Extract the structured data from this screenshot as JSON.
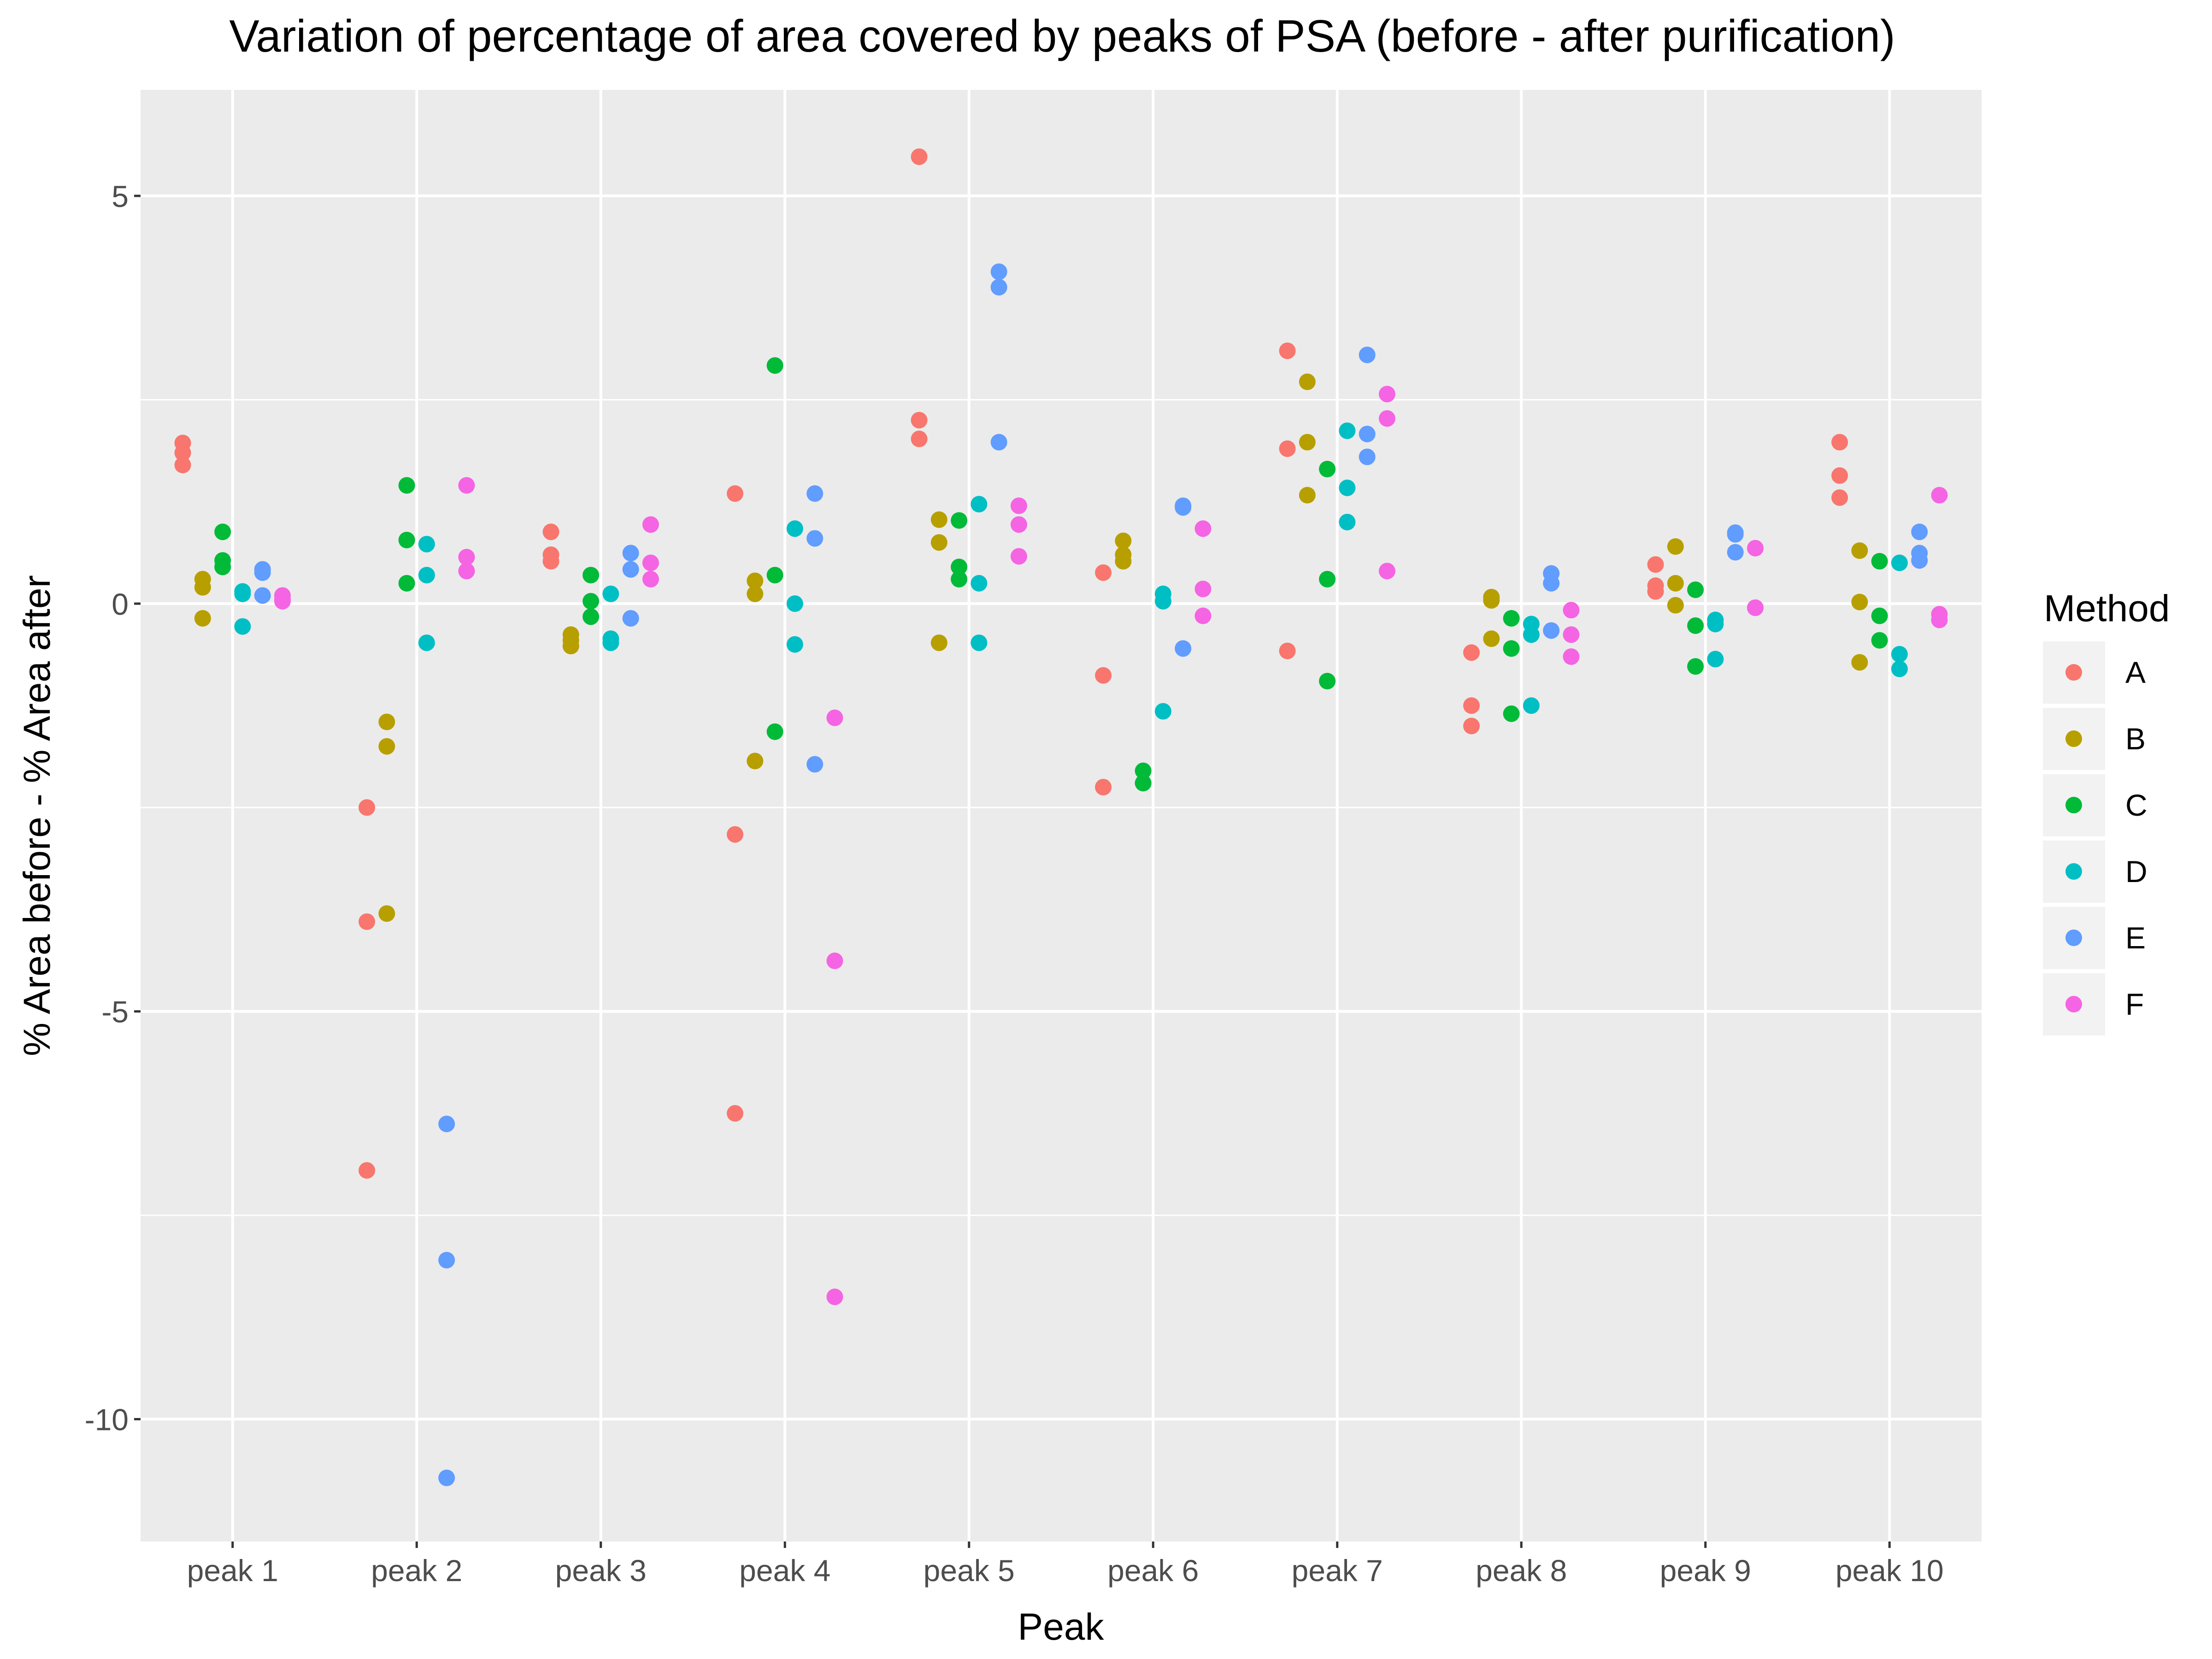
{
  "chart_data": {
    "type": "scatter",
    "title": "Variation of percentage of area covered by peaks of PSA (before - after purification)",
    "xlabel": "Peak",
    "ylabel": "% Area before - % Area after",
    "categories": [
      "peak 1",
      "peak 2",
      "peak 3",
      "peak 4",
      "peak 5",
      "peak 6",
      "peak 7",
      "peak 8",
      "peak 9",
      "peak 10"
    ],
    "ylim": [
      -11.5,
      6.3
    ],
    "yticks": [
      5,
      0,
      -5,
      -10
    ],
    "ytick_labels": [
      "5",
      "0",
      "-5",
      "-10"
    ],
    "grid": true,
    "legend": {
      "title": "Method",
      "position": "right"
    },
    "series": [
      {
        "name": "A",
        "color": "#F8766D",
        "points": [
          {
            "x": "peak 1",
            "y": 1.97
          },
          {
            "x": "peak 1",
            "y": 1.85
          },
          {
            "x": "peak 1",
            "y": 1.7
          },
          {
            "x": "peak 2",
            "y": -2.5
          },
          {
            "x": "peak 2",
            "y": -3.9
          },
          {
            "x": "peak 2",
            "y": -6.95
          },
          {
            "x": "peak 3",
            "y": 0.88
          },
          {
            "x": "peak 3",
            "y": 0.6
          },
          {
            "x": "peak 3",
            "y": 0.52
          },
          {
            "x": "peak 4",
            "y": 1.35
          },
          {
            "x": "peak 4",
            "y": -2.83
          },
          {
            "x": "peak 4",
            "y": -6.25
          },
          {
            "x": "peak 5",
            "y": 5.48
          },
          {
            "x": "peak 5",
            "y": 2.25
          },
          {
            "x": "peak 5",
            "y": 2.02
          },
          {
            "x": "peak 6",
            "y": 0.38
          },
          {
            "x": "peak 6",
            "y": -0.88
          },
          {
            "x": "peak 6",
            "y": -2.25
          },
          {
            "x": "peak 7",
            "y": 3.1
          },
          {
            "x": "peak 7",
            "y": 1.9
          },
          {
            "x": "peak 7",
            "y": -0.58
          },
          {
            "x": "peak 8",
            "y": -0.6
          },
          {
            "x": "peak 8",
            "y": -1.25
          },
          {
            "x": "peak 8",
            "y": -1.5
          },
          {
            "x": "peak 9",
            "y": 0.48
          },
          {
            "x": "peak 9",
            "y": 0.22
          },
          {
            "x": "peak 9",
            "y": 0.15
          },
          {
            "x": "peak 10",
            "y": 1.98
          },
          {
            "x": "peak 10",
            "y": 1.57
          },
          {
            "x": "peak 10",
            "y": 1.3
          }
        ]
      },
      {
        "name": "B",
        "color": "#B79F00",
        "points": [
          {
            "x": "peak 1",
            "y": 0.3
          },
          {
            "x": "peak 1",
            "y": 0.2
          },
          {
            "x": "peak 1",
            "y": -0.18
          },
          {
            "x": "peak 2",
            "y": -1.45
          },
          {
            "x": "peak 2",
            "y": -1.75
          },
          {
            "x": "peak 2",
            "y": -3.8
          },
          {
            "x": "peak 3",
            "y": -0.38
          },
          {
            "x": "peak 3",
            "y": -0.45
          },
          {
            "x": "peak 3",
            "y": -0.52
          },
          {
            "x": "peak 4",
            "y": 0.28
          },
          {
            "x": "peak 4",
            "y": 0.12
          },
          {
            "x": "peak 4",
            "y": -1.93
          },
          {
            "x": "peak 5",
            "y": 1.03
          },
          {
            "x": "peak 5",
            "y": 0.75
          },
          {
            "x": "peak 5",
            "y": -0.48
          },
          {
            "x": "peak 6",
            "y": 0.77
          },
          {
            "x": "peak 6",
            "y": 0.6
          },
          {
            "x": "peak 6",
            "y": 0.52
          },
          {
            "x": "peak 7",
            "y": 2.72
          },
          {
            "x": "peak 7",
            "y": 1.98
          },
          {
            "x": "peak 7",
            "y": 1.33
          },
          {
            "x": "peak 8",
            "y": 0.08
          },
          {
            "x": "peak 8",
            "y": 0.04
          },
          {
            "x": "peak 8",
            "y": -0.43
          },
          {
            "x": "peak 9",
            "y": 0.7
          },
          {
            "x": "peak 9",
            "y": 0.25
          },
          {
            "x": "peak 9",
            "y": -0.02
          },
          {
            "x": "peak 10",
            "y": 0.65
          },
          {
            "x": "peak 10",
            "y": 0.02
          },
          {
            "x": "peak 10",
            "y": -0.72
          }
        ]
      },
      {
        "name": "C",
        "color": "#00BA38",
        "points": [
          {
            "x": "peak 1",
            "y": 0.88
          },
          {
            "x": "peak 1",
            "y": 0.53
          },
          {
            "x": "peak 1",
            "y": 0.45
          },
          {
            "x": "peak 2",
            "y": 1.45
          },
          {
            "x": "peak 2",
            "y": 0.78
          },
          {
            "x": "peak 2",
            "y": 0.25
          },
          {
            "x": "peak 3",
            "y": 0.35
          },
          {
            "x": "peak 3",
            "y": 0.03
          },
          {
            "x": "peak 3",
            "y": -0.16
          },
          {
            "x": "peak 4",
            "y": 2.92
          },
          {
            "x": "peak 4",
            "y": 0.35
          },
          {
            "x": "peak 4",
            "y": -1.57
          },
          {
            "x": "peak 5",
            "y": 1.02
          },
          {
            "x": "peak 5",
            "y": 0.45
          },
          {
            "x": "peak 5",
            "y": 0.3
          },
          {
            "x": "peak 6",
            "y": -2.05
          },
          {
            "x": "peak 6",
            "y": -2.2
          },
          {
            "x": "peak 6",
            "y": -2.2
          },
          {
            "x": "peak 7",
            "y": 1.65
          },
          {
            "x": "peak 7",
            "y": 0.3
          },
          {
            "x": "peak 7",
            "y": -0.95
          },
          {
            "x": "peak 8",
            "y": -0.18
          },
          {
            "x": "peak 8",
            "y": -0.55
          },
          {
            "x": "peak 8",
            "y": -1.35
          },
          {
            "x": "peak 9",
            "y": 0.17
          },
          {
            "x": "peak 9",
            "y": -0.27
          },
          {
            "x": "peak 9",
            "y": -0.77
          },
          {
            "x": "peak 10",
            "y": 0.52
          },
          {
            "x": "peak 10",
            "y": -0.15
          },
          {
            "x": "peak 10",
            "y": -0.45
          }
        ]
      },
      {
        "name": "D",
        "color": "#00BFC4",
        "points": [
          {
            "x": "peak 1",
            "y": 0.15
          },
          {
            "x": "peak 1",
            "y": 0.12
          },
          {
            "x": "peak 1",
            "y": -0.28
          },
          {
            "x": "peak 2",
            "y": 0.73
          },
          {
            "x": "peak 2",
            "y": 0.35
          },
          {
            "x": "peak 2",
            "y": -0.48
          },
          {
            "x": "peak 3",
            "y": 0.12
          },
          {
            "x": "peak 3",
            "y": -0.43
          },
          {
            "x": "peak 3",
            "y": -0.48
          },
          {
            "x": "peak 4",
            "y": 0.92
          },
          {
            "x": "peak 4",
            "y": 0.0
          },
          {
            "x": "peak 4",
            "y": -0.5
          },
          {
            "x": "peak 5",
            "y": 1.22
          },
          {
            "x": "peak 5",
            "y": 0.25
          },
          {
            "x": "peak 5",
            "y": -0.48
          },
          {
            "x": "peak 6",
            "y": 0.12
          },
          {
            "x": "peak 6",
            "y": 0.03
          },
          {
            "x": "peak 6",
            "y": -1.32
          },
          {
            "x": "peak 7",
            "y": 2.12
          },
          {
            "x": "peak 7",
            "y": 1.42
          },
          {
            "x": "peak 7",
            "y": 1.0
          },
          {
            "x": "peak 8",
            "y": -0.25
          },
          {
            "x": "peak 8",
            "y": -0.38
          },
          {
            "x": "peak 8",
            "y": -1.25
          },
          {
            "x": "peak 9",
            "y": -0.2
          },
          {
            "x": "peak 9",
            "y": -0.25
          },
          {
            "x": "peak 9",
            "y": -0.68
          },
          {
            "x": "peak 10",
            "y": 0.5
          },
          {
            "x": "peak 10",
            "y": -0.62
          },
          {
            "x": "peak 10",
            "y": -0.8
          }
        ]
      },
      {
        "name": "E",
        "color": "#619CFF",
        "points": [
          {
            "x": "peak 1",
            "y": 0.42
          },
          {
            "x": "peak 1",
            "y": 0.38
          },
          {
            "x": "peak 1",
            "y": 0.1
          },
          {
            "x": "peak 2",
            "y": -6.38
          },
          {
            "x": "peak 2",
            "y": -8.05
          },
          {
            "x": "peak 2",
            "y": -10.72
          },
          {
            "x": "peak 3",
            "y": 0.62
          },
          {
            "x": "peak 3",
            "y": 0.42
          },
          {
            "x": "peak 3",
            "y": -0.18
          },
          {
            "x": "peak 4",
            "y": 1.35
          },
          {
            "x": "peak 4",
            "y": 0.8
          },
          {
            "x": "peak 4",
            "y": -1.97
          },
          {
            "x": "peak 5",
            "y": 4.07
          },
          {
            "x": "peak 5",
            "y": 3.88
          },
          {
            "x": "peak 5",
            "y": 1.98
          },
          {
            "x": "peak 6",
            "y": 1.2
          },
          {
            "x": "peak 6",
            "y": 1.18
          },
          {
            "x": "peak 6",
            "y": -0.55
          },
          {
            "x": "peak 7",
            "y": 3.05
          },
          {
            "x": "peak 7",
            "y": 2.08
          },
          {
            "x": "peak 7",
            "y": 1.8
          },
          {
            "x": "peak 8",
            "y": 0.37
          },
          {
            "x": "peak 8",
            "y": 0.25
          },
          {
            "x": "peak 8",
            "y": -0.33
          },
          {
            "x": "peak 9",
            "y": 0.87
          },
          {
            "x": "peak 9",
            "y": 0.85
          },
          {
            "x": "peak 9",
            "y": 0.63
          },
          {
            "x": "peak 10",
            "y": 0.88
          },
          {
            "x": "peak 10",
            "y": 0.62
          },
          {
            "x": "peak 10",
            "y": 0.53
          }
        ]
      },
      {
        "name": "F",
        "color": "#F564E3",
        "points": [
          {
            "x": "peak 1",
            "y": 0.1
          },
          {
            "x": "peak 1",
            "y": 0.05
          },
          {
            "x": "peak 1",
            "y": 0.03
          },
          {
            "x": "peak 2",
            "y": 1.45
          },
          {
            "x": "peak 2",
            "y": 0.57
          },
          {
            "x": "peak 2",
            "y": 0.4
          },
          {
            "x": "peak 3",
            "y": 0.97
          },
          {
            "x": "peak 3",
            "y": 0.5
          },
          {
            "x": "peak 3",
            "y": 0.3
          },
          {
            "x": "peak 4",
            "y": -1.4
          },
          {
            "x": "peak 4",
            "y": -4.38
          },
          {
            "x": "peak 4",
            "y": -8.5
          },
          {
            "x": "peak 5",
            "y": 1.2
          },
          {
            "x": "peak 5",
            "y": 0.97
          },
          {
            "x": "peak 5",
            "y": 0.58
          },
          {
            "x": "peak 6",
            "y": 0.92
          },
          {
            "x": "peak 6",
            "y": 0.18
          },
          {
            "x": "peak 6",
            "y": -0.15
          },
          {
            "x": "peak 7",
            "y": 2.57
          },
          {
            "x": "peak 7",
            "y": 2.27
          },
          {
            "x": "peak 7",
            "y": 0.4
          },
          {
            "x": "peak 8",
            "y": -0.08
          },
          {
            "x": "peak 8",
            "y": -0.38
          },
          {
            "x": "peak 8",
            "y": -0.65
          },
          {
            "x": "peak 9",
            "y": 0.68
          },
          {
            "x": "peak 9",
            "y": -0.05
          },
          {
            "x": "peak 9",
            "y": -0.05
          },
          {
            "x": "peak 10",
            "y": 1.33
          },
          {
            "x": "peak 10",
            "y": -0.13
          },
          {
            "x": "peak 10",
            "y": -0.2
          }
        ]
      }
    ]
  }
}
